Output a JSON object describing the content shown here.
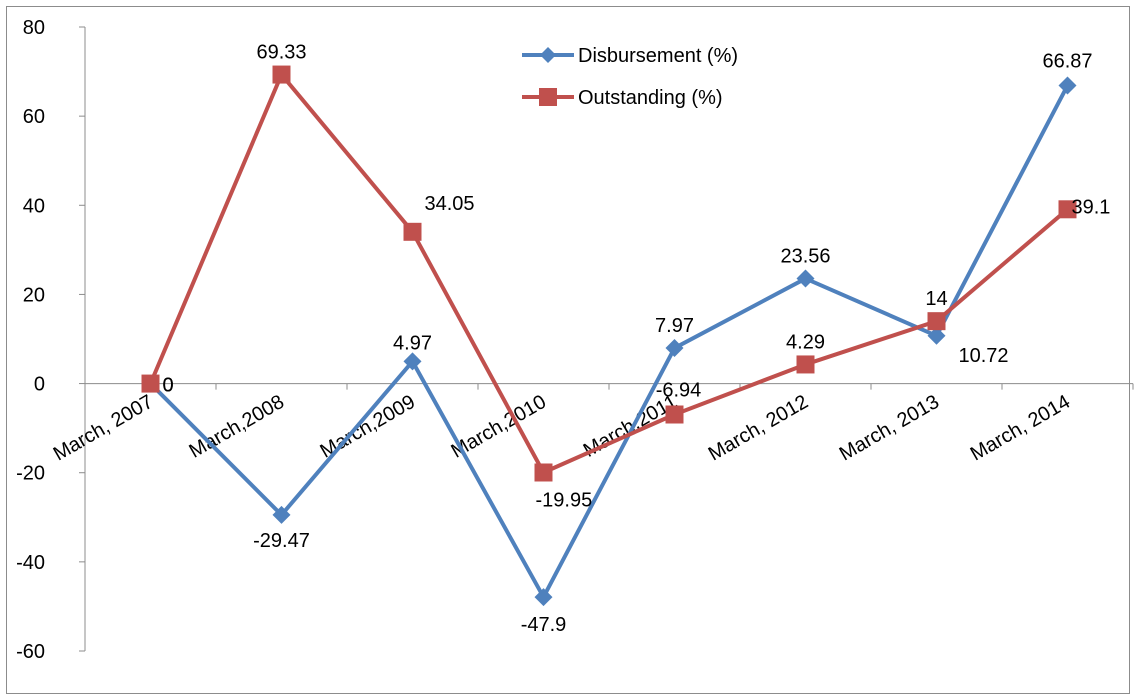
{
  "chart_data": {
    "type": "line",
    "categories": [
      "March, 2007",
      "March,2008",
      "March,2009",
      "March,2010",
      "March,2011",
      "March, 2012",
      "March, 2013",
      "March, 2014"
    ],
    "series": [
      {
        "name": "Disbursement (%)",
        "color": "#4f81bd",
        "marker": "diamond",
        "values": [
          0,
          -29.47,
          4.97,
          -47.9,
          7.97,
          23.56,
          10.72,
          66.87
        ],
        "labels": [
          "0",
          "-29.47",
          "4.97",
          "-47.9",
          "7.97",
          "23.56",
          "10.72",
          "66.87"
        ]
      },
      {
        "name": "Outstanding (%)",
        "color": "#c0504d",
        "marker": "square",
        "values": [
          0,
          69.33,
          34.05,
          -19.95,
          -6.94,
          4.29,
          14,
          39.1
        ],
        "labels": [
          "0",
          "69.33",
          "34.05",
          "-19.95",
          "-6.94",
          "4.29",
          "14",
          "39.1"
        ]
      }
    ],
    "ylim": [
      -60,
      80
    ],
    "yticks": [
      -60,
      -40,
      -20,
      0,
      20,
      40,
      60,
      80
    ],
    "legend_position": "top-right",
    "grid": false
  }
}
